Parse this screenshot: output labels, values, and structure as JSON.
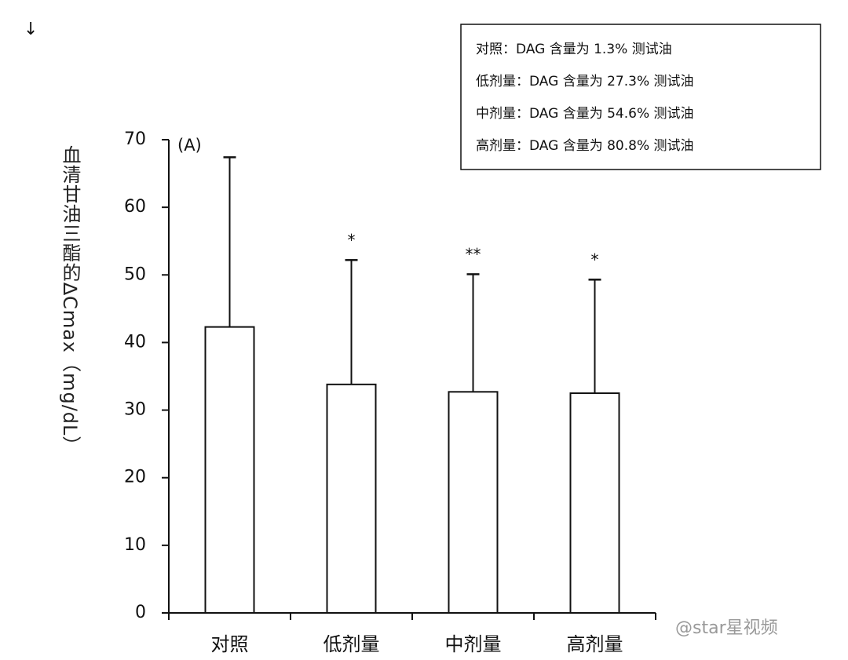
{
  "chart_data": {
    "type": "bar",
    "panel_label": "(A)",
    "y_label": "血清甘油三酯的∆Cmax（mg/dL）",
    "categories": [
      "对照",
      "低剂量",
      "中剂量",
      "高剂量"
    ],
    "values": [
      42.3,
      33.8,
      32.7,
      32.5
    ],
    "errors": [
      25.1,
      18.4,
      17.4,
      16.8
    ],
    "significance": [
      "",
      "*",
      "**",
      "*"
    ],
    "color": "#ffffff",
    "ylim": [
      0,
      70
    ],
    "yticks": [
      0,
      10,
      20,
      30,
      40,
      50,
      60,
      70
    ],
    "legend_lines": [
      "对照：DAG 含量为 1.3%  测试油",
      "低剂量：DAG 含量为  27.3%  测试油",
      "中剂量：DAG 含量为  54.6%  测试油",
      "高剂量：DAG 含量为 80.8%  测试油"
    ],
    "corner_symbol": "↓",
    "watermark": "@star星视频"
  }
}
